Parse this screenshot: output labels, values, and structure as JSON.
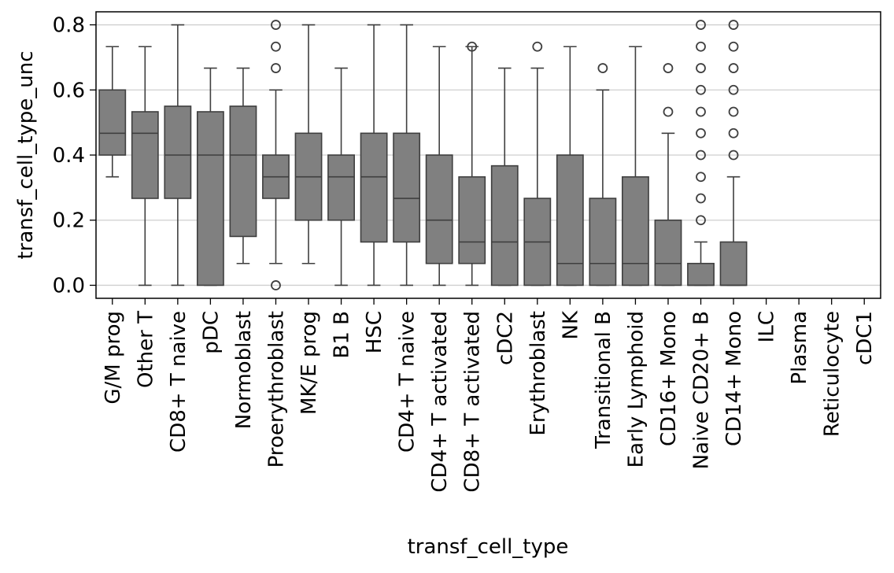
{
  "chart_data": {
    "type": "box",
    "xlabel": "transf_cell_type",
    "ylabel": "transf_cell_type_unc",
    "ylim": [
      -0.04,
      0.84
    ],
    "yticks": [
      0.0,
      0.2,
      0.4,
      0.6,
      0.8
    ],
    "ytick_labels": [
      "0.0",
      "0.2",
      "0.4",
      "0.6",
      "0.8"
    ],
    "grid": "horizontal",
    "box_color": "#808080",
    "line_color": "#3f3f3f",
    "categories": [
      "G/M prog",
      "Other T",
      "CD8+ T naive",
      "pDC",
      "Normoblast",
      "Proerythroblast",
      "MK/E prog",
      "B1 B",
      "HSC",
      "CD4+ T naive",
      "CD4+ T activated",
      "CD8+ T activated",
      "cDC2",
      "Erythroblast",
      "NK",
      "Transitional B",
      "Early Lymphoid",
      "CD16+ Mono",
      "Naive CD20+ B",
      "CD14+ Mono",
      "ILC",
      "Plasma",
      "Reticulocyte",
      "cDC1"
    ],
    "boxes": [
      {
        "whisker_low": 0.333,
        "q1": 0.4,
        "median": 0.467,
        "q3": 0.6,
        "whisker_high": 0.733,
        "outliers": []
      },
      {
        "whisker_low": 0.0,
        "q1": 0.267,
        "median": 0.467,
        "q3": 0.533,
        "whisker_high": 0.733,
        "outliers": []
      },
      {
        "whisker_low": 0.0,
        "q1": 0.267,
        "median": 0.4,
        "q3": 0.55,
        "whisker_high": 0.8,
        "outliers": []
      },
      {
        "whisker_low": 0.0,
        "q1": 0.0,
        "median": 0.4,
        "q3": 0.533,
        "whisker_high": 0.667,
        "outliers": []
      },
      {
        "whisker_low": 0.067,
        "q1": 0.15,
        "median": 0.4,
        "q3": 0.55,
        "whisker_high": 0.667,
        "outliers": []
      },
      {
        "whisker_low": 0.067,
        "q1": 0.267,
        "median": 0.333,
        "q3": 0.4,
        "whisker_high": 0.6,
        "outliers": [
          0.0,
          0.667,
          0.733,
          0.8
        ]
      },
      {
        "whisker_low": 0.067,
        "q1": 0.2,
        "median": 0.333,
        "q3": 0.467,
        "whisker_high": 0.8,
        "outliers": []
      },
      {
        "whisker_low": 0.0,
        "q1": 0.2,
        "median": 0.333,
        "q3": 0.4,
        "whisker_high": 0.667,
        "outliers": []
      },
      {
        "whisker_low": 0.0,
        "q1": 0.133,
        "median": 0.333,
        "q3": 0.467,
        "whisker_high": 0.8,
        "outliers": []
      },
      {
        "whisker_low": 0.0,
        "q1": 0.133,
        "median": 0.267,
        "q3": 0.467,
        "whisker_high": 0.8,
        "outliers": []
      },
      {
        "whisker_low": 0.0,
        "q1": 0.067,
        "median": 0.2,
        "q3": 0.4,
        "whisker_high": 0.733,
        "outliers": []
      },
      {
        "whisker_low": 0.0,
        "q1": 0.067,
        "median": 0.133,
        "q3": 0.333,
        "whisker_high": 0.733,
        "outliers": [
          0.733
        ]
      },
      {
        "whisker_low": 0.0,
        "q1": 0.0,
        "median": 0.133,
        "q3": 0.367,
        "whisker_high": 0.667,
        "outliers": []
      },
      {
        "whisker_low": 0.0,
        "q1": 0.0,
        "median": 0.133,
        "q3": 0.267,
        "whisker_high": 0.667,
        "outliers": [
          0.733
        ]
      },
      {
        "whisker_low": 0.0,
        "q1": 0.0,
        "median": 0.067,
        "q3": 0.4,
        "whisker_high": 0.733,
        "outliers": []
      },
      {
        "whisker_low": 0.0,
        "q1": 0.0,
        "median": 0.067,
        "q3": 0.267,
        "whisker_high": 0.6,
        "outliers": [
          0.667
        ]
      },
      {
        "whisker_low": 0.0,
        "q1": 0.0,
        "median": 0.067,
        "q3": 0.333,
        "whisker_high": 0.733,
        "outliers": []
      },
      {
        "whisker_low": 0.0,
        "q1": 0.0,
        "median": 0.067,
        "q3": 0.2,
        "whisker_high": 0.467,
        "outliers": [
          0.533,
          0.667
        ]
      },
      {
        "whisker_low": 0.0,
        "q1": 0.0,
        "median": 0.0,
        "q3": 0.067,
        "whisker_high": 0.133,
        "outliers": [
          0.2,
          0.267,
          0.333,
          0.4,
          0.467,
          0.533,
          0.6,
          0.667,
          0.733,
          0.8
        ]
      },
      {
        "whisker_low": 0.0,
        "q1": 0.0,
        "median": 0.0,
        "q3": 0.133,
        "whisker_high": 0.333,
        "outliers": [
          0.4,
          0.467,
          0.533,
          0.6,
          0.667,
          0.733,
          0.8
        ]
      },
      null,
      null,
      null,
      null
    ]
  }
}
